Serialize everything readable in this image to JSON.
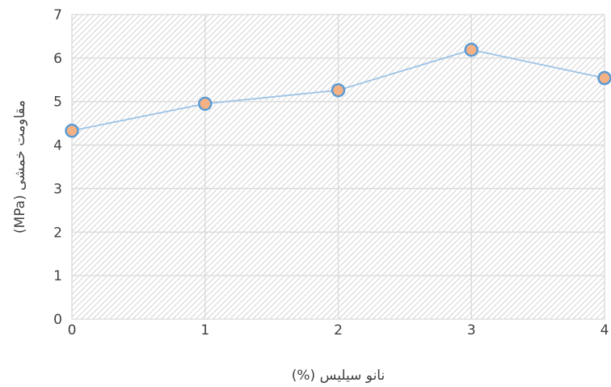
{
  "chart_data": {
    "type": "line",
    "title": "",
    "xlabel": "نانو سیلیس (%)",
    "ylabel": "مقاومت خمشی (MPa)",
    "x": [
      0,
      1,
      2,
      3,
      4
    ],
    "xticks": [
      "0",
      "1",
      "2",
      "3",
      "4"
    ],
    "yticks": [
      "0",
      "1",
      "2",
      "3",
      "4",
      "5",
      "6",
      "7"
    ],
    "xlim": [
      0,
      4
    ],
    "ylim": [
      0,
      7
    ],
    "grid": true,
    "series": [
      {
        "values": [
          4.33,
          4.95,
          5.26,
          6.19,
          5.54
        ]
      }
    ],
    "colors": {
      "line": "#9dc3e6",
      "marker_fill": "#f4b183",
      "marker_stroke": "#5b9bd5",
      "grid": "#d9d9d9",
      "hatch": "#c8c8c8"
    }
  }
}
